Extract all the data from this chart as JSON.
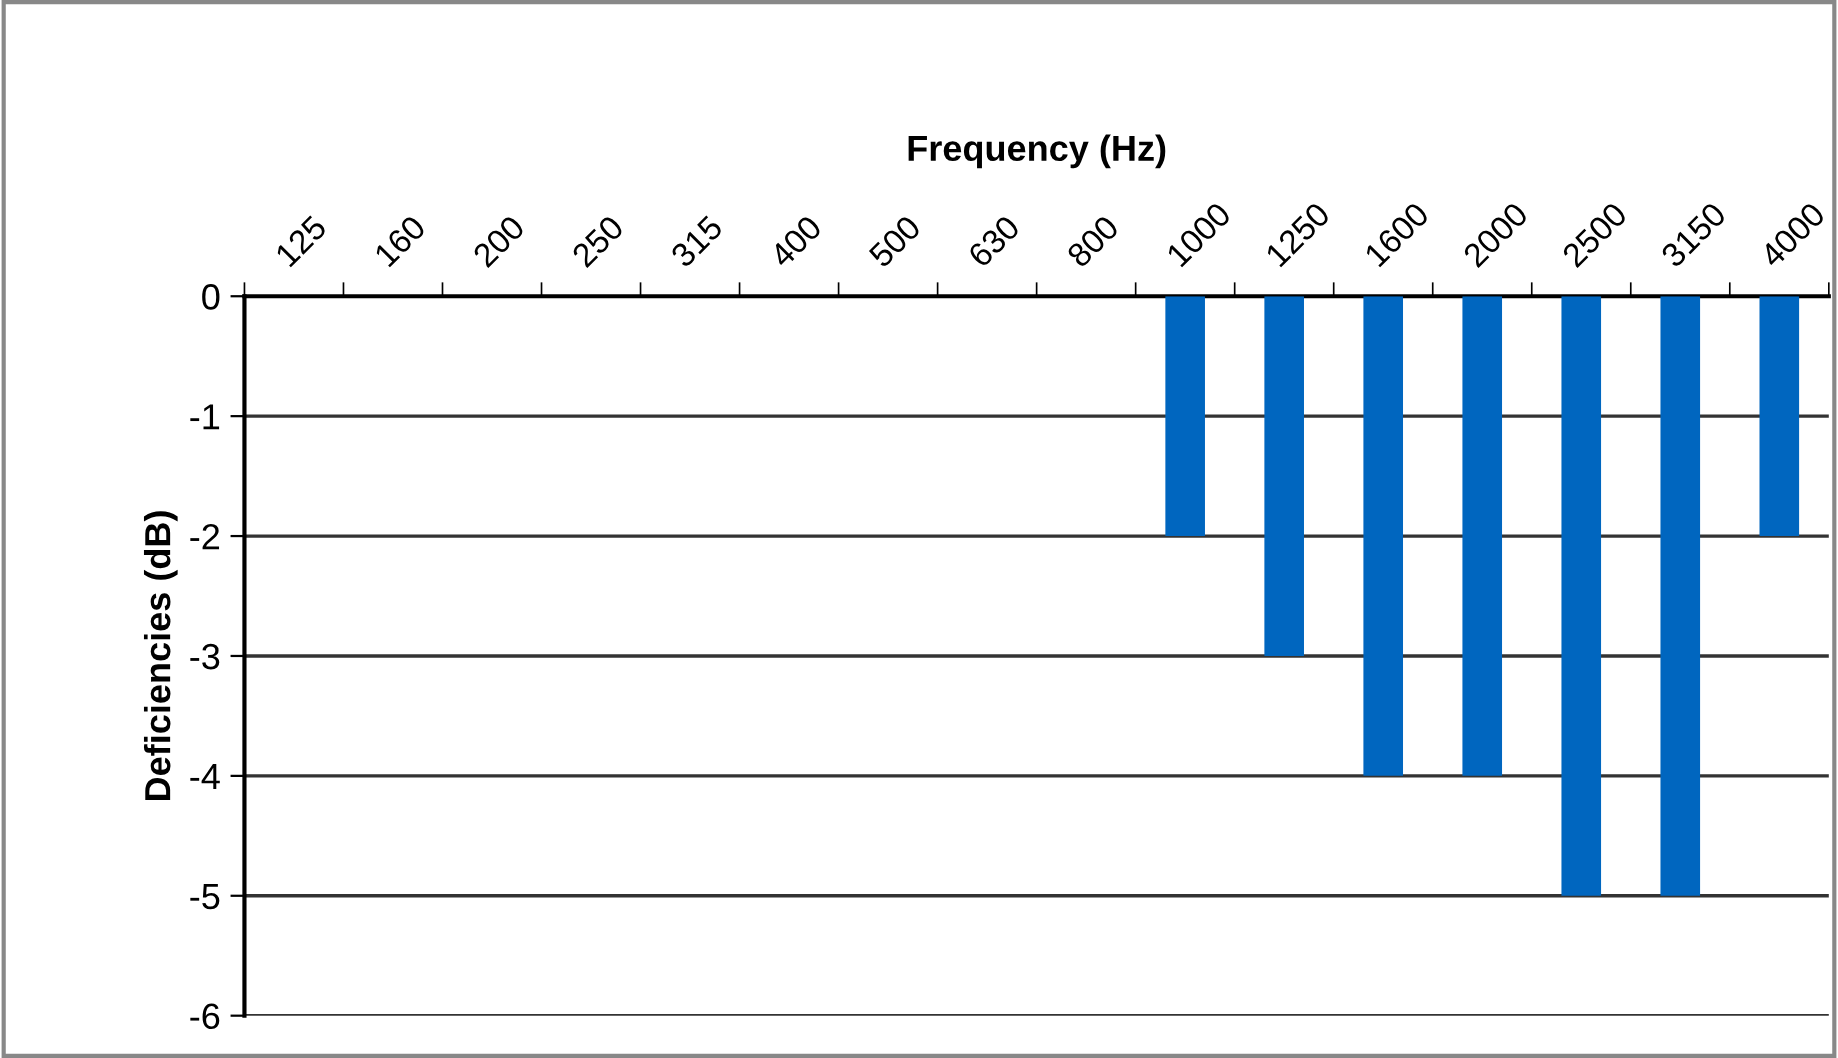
{
  "chart_data": {
    "type": "bar",
    "xlabel": "Frequency (Hz)",
    "ylabel": "Deficiencies (dB)",
    "categories": [
      "125",
      "160",
      "200",
      "250",
      "315",
      "400",
      "500",
      "630",
      "800",
      "1000",
      "1250",
      "1600",
      "2000",
      "2500",
      "3150",
      "4000"
    ],
    "values": [
      0,
      0,
      0,
      0,
      0,
      0,
      0,
      0,
      0,
      -2,
      -3,
      -4,
      -4,
      -5,
      -5,
      -2
    ],
    "color": "#0066bf",
    "ylim": [
      -6,
      0
    ],
    "yticks": [
      -6,
      -5,
      -4,
      -3,
      -2,
      -1,
      0
    ],
    "grid": "y",
    "legend": false
  }
}
